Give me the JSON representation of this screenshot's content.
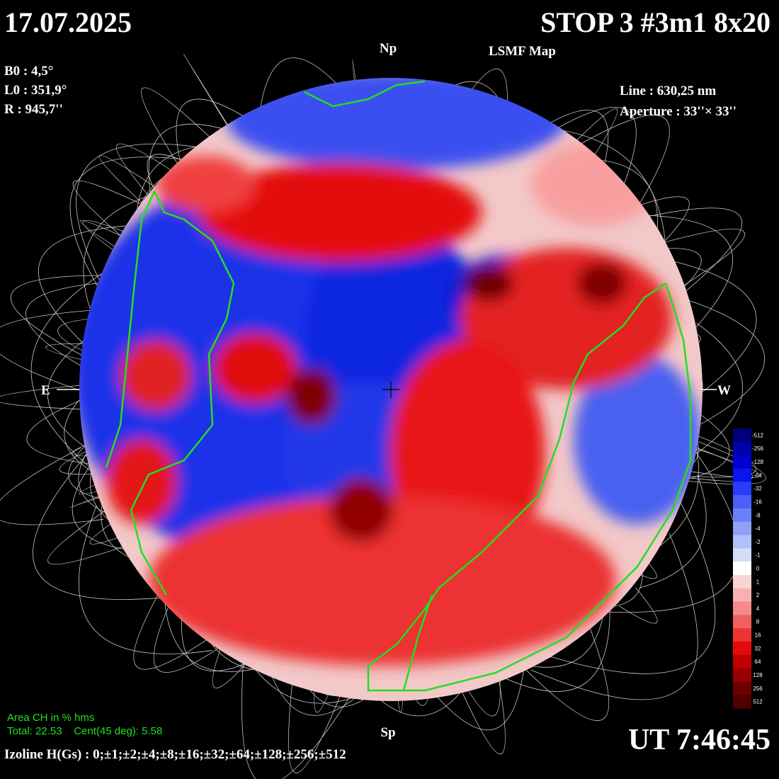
{
  "header": {
    "date": "17.07.2025",
    "title": "STOP 3 #3m1 8x20",
    "subtitle": "LSMF  Map"
  },
  "params_left": [
    "B0 : 4,5°",
    "L0 : 351,9°",
    "R  : 945,7''"
  ],
  "params_right": [
    "Line :  630,25 nm",
    "Aperture : 33''× 33''"
  ],
  "directions": {
    "north": "Np",
    "south": "Sp",
    "east": "E",
    "west": "W"
  },
  "area": {
    "title": "Area CH in % hms",
    "values": "Total: 22.53    Cent(45 deg): 5.58"
  },
  "time": "UT 7:46:45",
  "izoline": "Izoline H(Gs) : 0;±1;±2;±4;±8;±16;±32;±64;±128;±256;±512",
  "legend": {
    "labels": [
      -512,
      -256,
      -128,
      -64,
      -32,
      -16,
      -8,
      -4,
      -2,
      -1,
      0,
      1,
      2,
      4,
      8,
      16,
      32,
      64,
      128,
      256,
      512
    ],
    "colors": [
      "#00007a",
      "#0000a8",
      "#0000d0",
      "#0a14f0",
      "#2a3cf8",
      "#4a5ef8",
      "#6a80f8",
      "#8ea0f8",
      "#b0c0f8",
      "#d4dcfa",
      "#ffffff",
      "#fad4d4",
      "#f8b0b0",
      "#f48a8a",
      "#f06060",
      "#ec3434",
      "#e40a0a",
      "#c00000",
      "#980000",
      "#700000",
      "#500000"
    ]
  }
}
